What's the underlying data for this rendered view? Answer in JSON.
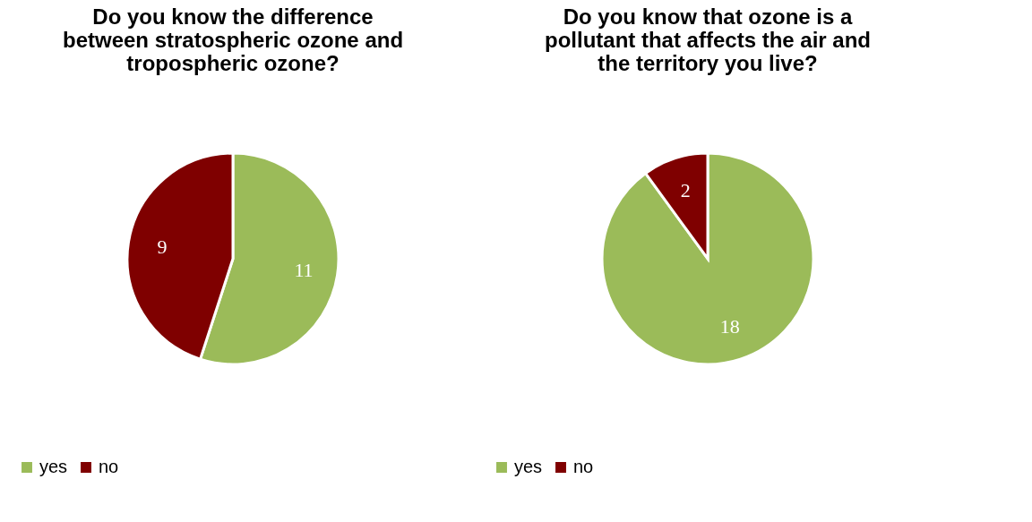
{
  "chart_data": [
    {
      "type": "pie",
      "title": "Do you know the difference between stratospheric ozone and tropospheric ozone?",
      "categories": [
        "yes",
        "no"
      ],
      "values": [
        11,
        9
      ],
      "colors": [
        "#9bbb59",
        "#7f0000"
      ],
      "data_labels": true,
      "legend": "bottom"
    },
    {
      "type": "pie",
      "title": "Do you know that ozone is a pollutant that affects the air and the territory you live?",
      "categories": [
        "yes",
        "no"
      ],
      "values": [
        18,
        2
      ],
      "colors": [
        "#9bbb59",
        "#7f0000"
      ],
      "data_labels": true,
      "legend": "bottom"
    }
  ]
}
